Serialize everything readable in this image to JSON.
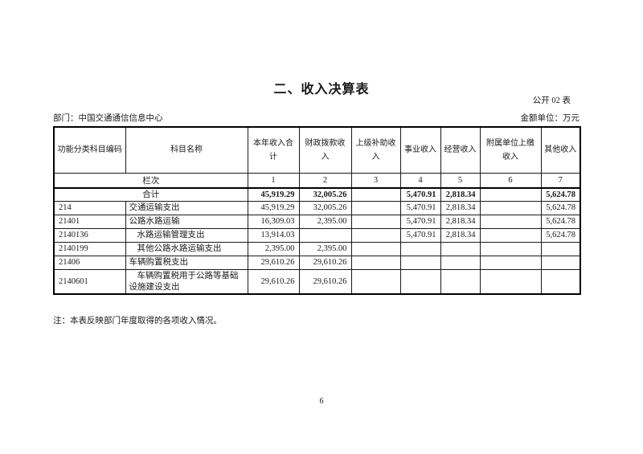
{
  "page": {
    "title": "二、收入决算表",
    "table_code": "公开 02 表",
    "department_label": "部门：中国交通通信信息中心",
    "unit_label": "金额单位：万元",
    "note": "注：本表反映部门年度取得的各项收入情况。",
    "page_number": "6"
  },
  "colors": {
    "background": "#ffffff",
    "ink": "#1a1a1a"
  },
  "table": {
    "headers": [
      "功能分类科目编码",
      "科目名称",
      "本年收入合计",
      "财政拨款收入",
      "上级补助收入",
      "事业收入",
      "经营收入",
      "附属单位上缴收入",
      "其他收入"
    ],
    "column_index_row": {
      "label": "栏次",
      "indices": [
        "1",
        "2",
        "3",
        "4",
        "5",
        "6",
        "7"
      ]
    },
    "total_row": {
      "label": "合计",
      "values": [
        "45,919.29",
        "32,005.26",
        "",
        "5,470.91",
        "2,818.34",
        "",
        "5,624.78"
      ]
    },
    "rows": [
      {
        "code": "214",
        "name": "交通运输支出",
        "indent": 0,
        "values": [
          "45,919.29",
          "32,005.26",
          "",
          "5,470.91",
          "2,818.34",
          "",
          "5,624.78"
        ]
      },
      {
        "code": "21401",
        "name": "公路水路运输",
        "indent": 0,
        "values": [
          "16,309.03",
          "2,395.00",
          "",
          "5,470.91",
          "2,818.34",
          "",
          "5,624.78"
        ]
      },
      {
        "code": "2140136",
        "name": "水路运输管理支出",
        "indent": 1,
        "values": [
          "13,914.03",
          "",
          "",
          "5,470.91",
          "2,818.34",
          "",
          "5,624.78"
        ]
      },
      {
        "code": "2140199",
        "name": "其他公路水路运输支出",
        "indent": 1,
        "values": [
          "2,395.00",
          "2,395.00",
          "",
          "",
          "",
          "",
          ""
        ]
      },
      {
        "code": "21406",
        "name": "车辆购置税支出",
        "indent": 0,
        "values": [
          "29,610.26",
          "29,610.26",
          "",
          "",
          "",
          "",
          ""
        ]
      },
      {
        "code": "2140601",
        "name": "车辆购置税用于公路等基础设施建设支出",
        "indent": 1,
        "values": [
          "29,610.26",
          "29,610.26",
          "",
          "",
          "",
          "",
          ""
        ]
      }
    ]
  }
}
